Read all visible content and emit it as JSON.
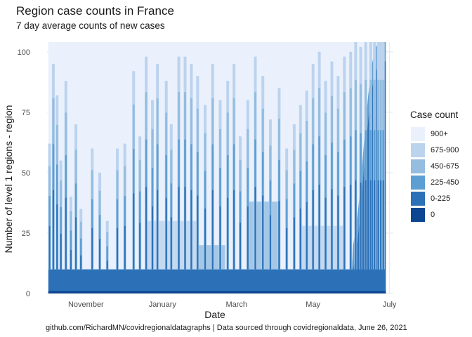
{
  "chart_data": {
    "type": "area",
    "title": "Region case counts in France",
    "subtitle": "7 day average counts of new cases",
    "xlabel": "Date",
    "ylabel": "Number of level 1 regions - region",
    "caption": "github.com/RichardMN/covidregionaldatagraphs | Data sourced through covidregionaldata, June 26, 2021",
    "x_ticks": [
      {
        "label": "November",
        "date": "2020-11-01"
      },
      {
        "label": "January",
        "date": "2021-01-01"
      },
      {
        "label": "March",
        "date": "2021-03-01"
      },
      {
        "label": "May",
        "date": "2021-05-01"
      },
      {
        "label": "July",
        "date": "2021-07-01"
      }
    ],
    "y_ticks": [
      0,
      25,
      50,
      75,
      100
    ],
    "xlim": [
      "2020-10-01",
      "2021-07-04"
    ],
    "ylim": [
      0,
      104
    ],
    "grid": true,
    "legend": {
      "title": "Case count",
      "placement": "right",
      "entries": [
        "900+",
        "675-900",
        "450-675",
        "225-450",
        "0-225",
        "0"
      ],
      "colors": [
        "#eaf1fc",
        "#bcd3ee",
        "#94bde0",
        "#5e9fd3",
        "#2c71b8",
        "#0c4592"
      ]
    },
    "series": [
      {
        "name": "0",
        "color": "#0c4592",
        "summary": "about 1 region in most days"
      },
      {
        "name": "0-225",
        "color": "#2c71b8",
        "summary": "about 10 regions through early June, rising to about 96 by late June"
      },
      {
        "name": "225-450",
        "color": "#5e9fd3"
      },
      {
        "name": "450-675",
        "color": "#94bde0"
      },
      {
        "name": "675-900",
        "color": "#bcd3ee"
      },
      {
        "name": "900+",
        "color": "#eaf1fc",
        "summary": "remaining regions up to the total of about 104"
      }
    ],
    "total_regions": 104,
    "spike_dates": [
      "2020-10-03",
      "2020-10-06",
      "2020-10-09",
      "2020-10-12",
      "2020-10-16",
      "2020-10-20",
      "2020-10-24",
      "2020-10-28",
      "2020-11-06",
      "2020-11-12",
      "2020-11-18",
      "2020-11-26",
      "2020-12-02",
      "2020-12-09",
      "2020-12-14",
      "2020-12-19",
      "2020-12-24",
      "2020-12-28",
      "2021-01-04",
      "2021-01-08",
      "2021-01-14",
      "2021-01-19",
      "2021-01-24",
      "2021-01-29",
      "2021-02-04",
      "2021-02-10",
      "2021-02-16",
      "2021-02-22",
      "2021-02-27",
      "2021-03-04",
      "2021-03-10",
      "2021-03-16",
      "2021-03-22",
      "2021-03-28",
      "2021-04-04",
      "2021-04-10",
      "2021-04-16",
      "2021-04-21",
      "2021-04-26",
      "2021-05-01",
      "2021-05-06",
      "2021-05-11",
      "2021-05-16",
      "2021-05-21",
      "2021-05-26",
      "2021-05-31",
      "2021-06-04",
      "2021-06-08",
      "2021-06-12",
      "2021-06-16",
      "2021-06-19",
      "2021-06-22",
      "2021-06-24",
      "2021-06-26"
    ],
    "spike_heights": [
      62,
      95,
      82,
      55,
      88,
      40,
      70,
      35,
      60,
      50,
      30,
      60,
      62,
      92,
      65,
      98,
      80,
      95,
      88,
      70,
      98,
      98,
      95,
      90,
      78,
      95,
      80,
      88,
      95,
      65,
      80,
      98,
      90,
      72,
      85,
      60,
      70,
      78,
      84,
      95,
      100,
      88,
      96,
      90,
      98,
      100,
      104,
      102,
      104,
      104,
      104,
      104,
      104,
      104
    ]
  }
}
